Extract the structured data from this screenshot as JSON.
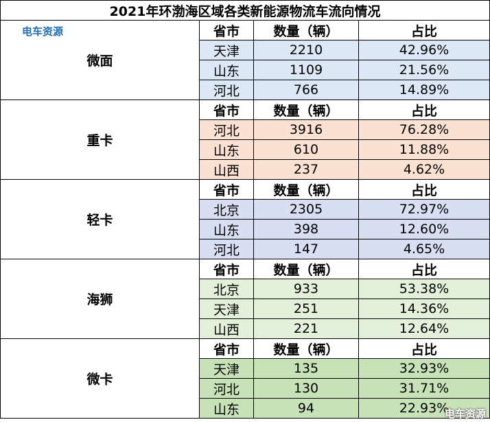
{
  "title": "2021年环渤海区域各类新能源物流车流向情况",
  "logo_text": "电车资源",
  "watermark_text": "电车资源",
  "header": {
    "province": "省市",
    "count": "数量（辆）",
    "share": "占比"
  },
  "groups": [
    {
      "category": "微面",
      "rows": [
        {
          "province": "天津",
          "count": "2210",
          "share": "42.96%"
        },
        {
          "province": "山东",
          "count": "1109",
          "share": "21.56%"
        },
        {
          "province": "河北",
          "count": "766",
          "share": "14.89%"
        }
      ]
    },
    {
      "category": "重卡",
      "rows": [
        {
          "province": "河北",
          "count": "3916",
          "share": "76.28%"
        },
        {
          "province": "山东",
          "count": "610",
          "share": "11.88%"
        },
        {
          "province": "山西",
          "count": "237",
          "share": "4.62%"
        }
      ]
    },
    {
      "category": "轻卡",
      "rows": [
        {
          "province": "北京",
          "count": "2305",
          "share": "72.97%"
        },
        {
          "province": "山东",
          "count": "398",
          "share": "12.60%"
        },
        {
          "province": "河北",
          "count": "147",
          "share": "4.65%"
        }
      ]
    },
    {
      "category": "海狮",
      "rows": [
        {
          "province": "北京",
          "count": "933",
          "share": "53.38%"
        },
        {
          "province": "天津",
          "count": "251",
          "share": "14.36%"
        },
        {
          "province": "山西",
          "count": "221",
          "share": "12.64%"
        }
      ]
    },
    {
      "category": "微卡",
      "rows": [
        {
          "province": "天津",
          "count": "135",
          "share": "32.93%"
        },
        {
          "province": "河北",
          "count": "130",
          "share": "31.71%"
        },
        {
          "province": "山东",
          "count": "94",
          "share": "22.93%"
        }
      ]
    }
  ]
}
